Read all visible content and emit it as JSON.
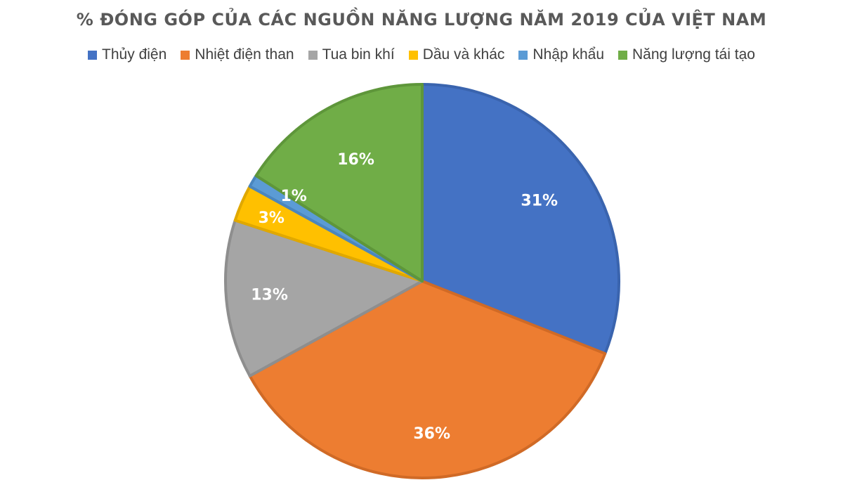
{
  "chart_data": {
    "type": "pie",
    "title": "% ĐÓNG GÓP CỦA CÁC NGUỒN NĂNG LƯỢNG NĂM 2019 CỦA VIỆT NAM",
    "legend_position": "top",
    "slices": [
      {
        "name": "Thủy điện",
        "value": 31,
        "label": "31%",
        "color": "#4472C4",
        "edge": "#3A64AE"
      },
      {
        "name": "Nhiệt điện than",
        "value": 36,
        "label": "36%",
        "color": "#ED7D31",
        "edge": "#D06A26"
      },
      {
        "name": "Tua bin khí",
        "value": 13,
        "label": "13%",
        "color": "#A5A5A5",
        "edge": "#8E8E8E"
      },
      {
        "name": "Dầu và khác",
        "value": 3,
        "label": "3%",
        "color": "#FFC000",
        "edge": "#E0A800"
      },
      {
        "name": "Nhập khẩu",
        "value": 1,
        "label": "1%",
        "color": "#5B9BD5",
        "edge": "#4A86BE"
      },
      {
        "name": "Năng lượng tái tạo",
        "value": 16,
        "label": "16%",
        "color": "#70AD47",
        "edge": "#5E963A"
      }
    ]
  }
}
